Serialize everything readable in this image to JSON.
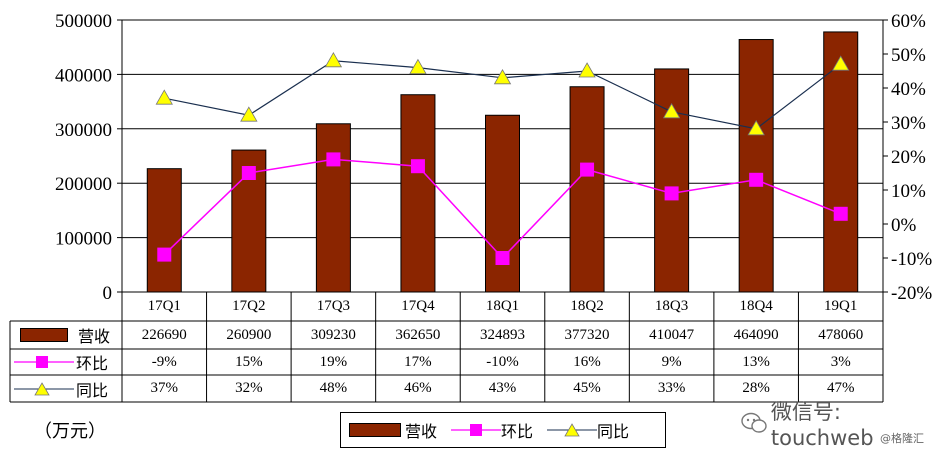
{
  "chart_data": {
    "type": "bar",
    "categories": [
      "17Q1",
      "17Q2",
      "17Q3",
      "17Q4",
      "18Q1",
      "18Q2",
      "18Q3",
      "18Q4",
      "19Q1"
    ],
    "series": [
      {
        "name": "营收",
        "type": "bar",
        "axis": "left",
        "values": [
          226690,
          260900,
          309230,
          362650,
          324893,
          377320,
          410047,
          464090,
          478060
        ],
        "color": "#8B2500"
      },
      {
        "name": "环比",
        "type": "line",
        "axis": "right",
        "values": [
          -9,
          15,
          19,
          17,
          -10,
          16,
          9,
          13,
          3
        ],
        "color": "#FF00FF"
      },
      {
        "name": "同比",
        "type": "line",
        "axis": "right",
        "values": [
          37,
          32,
          48,
          46,
          43,
          45,
          33,
          28,
          47
        ],
        "color": "#FFFF00"
      }
    ],
    "table_values": {
      "营收": [
        "226690",
        "260900",
        "309230",
        "362650",
        "324893",
        "377320",
        "410047",
        "464090",
        "478060"
      ],
      "环比": [
        "-9%",
        "15%",
        "19%",
        "17%",
        "-10%",
        "16%",
        "9%",
        "13%",
        "3%"
      ],
      "同比": [
        "37%",
        "32%",
        "48%",
        "46%",
        "43%",
        "45%",
        "33%",
        "28%",
        "47%"
      ]
    },
    "left_ticks": [
      "0",
      "100000",
      "200000",
      "300000",
      "400000",
      "500000"
    ],
    "right_ticks": [
      "-20%",
      "-10%",
      "0%",
      "10%",
      "20%",
      "30%",
      "40%",
      "50%",
      "60%"
    ],
    "ylim_left": [
      0,
      500000
    ],
    "ylim_right": [
      -20,
      60
    ],
    "unit_label": "（万元）",
    "legend": [
      "营收",
      "环比",
      "同比"
    ],
    "legend_placement": "bottom-center",
    "grid": true
  },
  "watermark": {
    "text": "微信号: touchweb",
    "icon": "wechat-icon"
  },
  "source": "@格隆汇"
}
